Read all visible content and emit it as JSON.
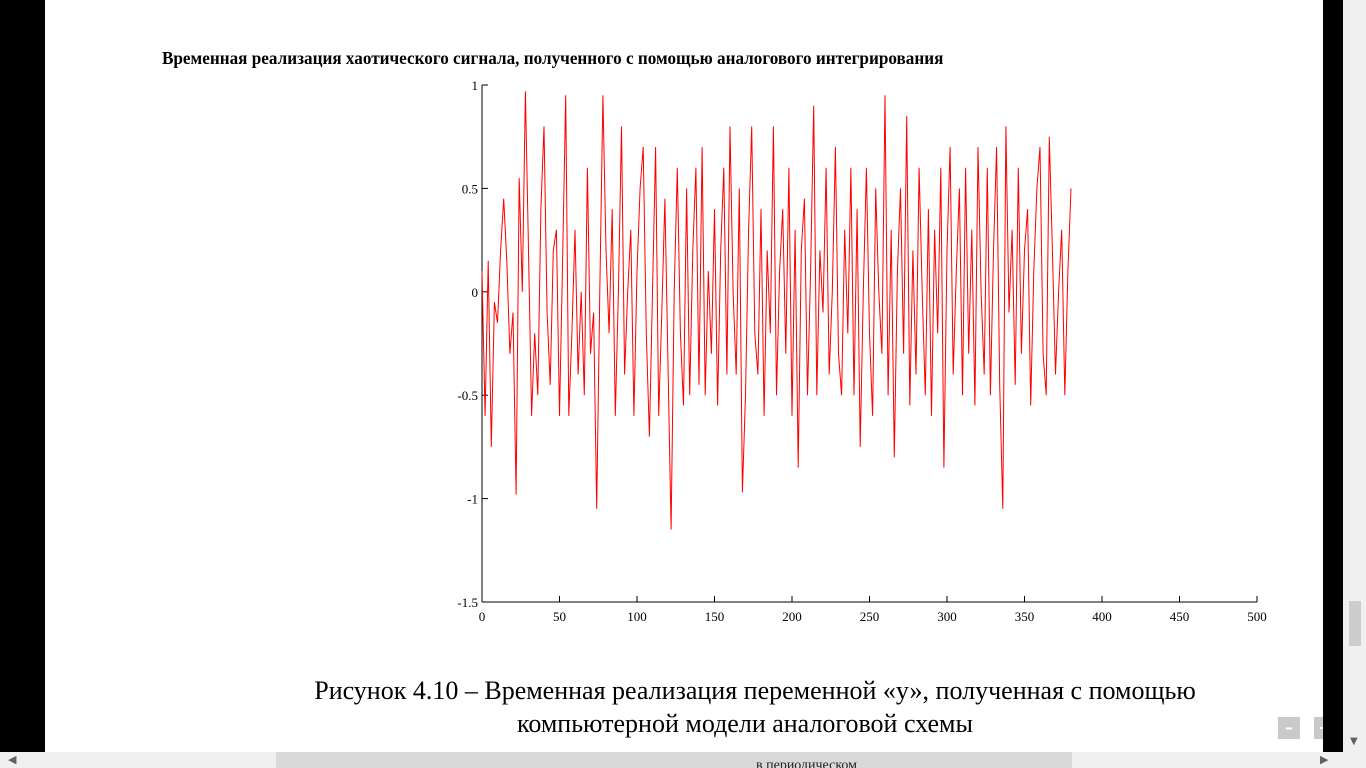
{
  "chart_data": {
    "type": "line",
    "title": "Временная реализация хаотического сигнала, полученного с помощью аналогового интегрирования",
    "xlim": [
      0,
      500
    ],
    "ylim": [
      -1.5,
      1
    ],
    "x_ticks": [
      "0",
      "50",
      "100",
      "150",
      "200",
      "250",
      "300",
      "350",
      "400",
      "450",
      "500"
    ],
    "y_ticks": [
      "1",
      "0.5",
      "0",
      "-0.5",
      "-1",
      "-1.5"
    ],
    "grid": false,
    "series_color": "#ff0000",
    "series": [
      {
        "x_start": 0,
        "x_step": 2,
        "values": [
          0.1,
          -0.6,
          0.15,
          -0.75,
          -0.05,
          -0.15,
          0.2,
          0.45,
          0.15,
          -0.3,
          -0.1,
          -0.98,
          0.55,
          0.0,
          0.97,
          0.2,
          -0.6,
          -0.2,
          -0.5,
          0.4,
          0.8,
          -0.1,
          -0.45,
          0.2,
          0.3,
          -0.6,
          0.15,
          0.95,
          -0.6,
          -0.2,
          0.3,
          -0.4,
          0.0,
          -0.5,
          0.6,
          -0.3,
          -0.1,
          -1.05,
          0.0,
          0.95,
          0.2,
          -0.2,
          0.4,
          -0.6,
          0.0,
          0.8,
          -0.4,
          0.0,
          0.3,
          -0.6,
          0.1,
          0.5,
          0.7,
          -0.2,
          -0.7,
          0.0,
          0.7,
          -0.6,
          -0.1,
          0.45,
          -0.35,
          -1.15,
          0.0,
          0.6,
          -0.2,
          -0.55,
          0.5,
          -0.5,
          0.2,
          0.6,
          -0.45,
          0.7,
          -0.5,
          0.1,
          -0.3,
          0.4,
          -0.55,
          0.2,
          0.6,
          -0.4,
          0.8,
          0.0,
          -0.4,
          0.5,
          -0.97,
          -0.5,
          0.3,
          0.8,
          -0.2,
          -0.4,
          0.4,
          -0.6,
          0.2,
          -0.2,
          0.8,
          -0.5,
          0.1,
          0.4,
          -0.3,
          0.6,
          -0.6,
          0.3,
          -0.85,
          0.2,
          0.45,
          -0.5,
          0.1,
          0.9,
          -0.5,
          0.2,
          -0.1,
          0.6,
          -0.4,
          0.0,
          0.7,
          -0.3,
          -0.5,
          0.3,
          -0.2,
          0.6,
          -0.5,
          0.4,
          -0.75,
          0.0,
          0.6,
          -0.2,
          -0.6,
          0.5,
          0.0,
          -0.3,
          0.95,
          -0.5,
          0.3,
          -0.8,
          0.1,
          0.5,
          -0.3,
          0.85,
          -0.55,
          0.2,
          -0.4,
          0.6,
          0.0,
          -0.5,
          0.4,
          -0.6,
          0.3,
          -0.2,
          0.6,
          -0.85,
          0.2,
          0.7,
          -0.4,
          0.1,
          0.5,
          -0.5,
          0.6,
          -0.3,
          0.3,
          -0.55,
          0.7,
          0.0,
          -0.4,
          0.6,
          -0.5,
          0.2,
          0.7,
          -0.45,
          -1.05,
          0.8,
          -0.1,
          0.3,
          -0.45,
          0.6,
          -0.3,
          0.2,
          0.4,
          -0.55,
          0.1,
          0.5,
          0.7,
          -0.3,
          -0.5,
          0.75,
          0.2,
          -0.4,
          0.0,
          0.3,
          -0.5,
          0.1,
          0.5
        ]
      }
    ]
  },
  "caption": {
    "line1": "Рисунок 4.10 – Временная реализация переменной «у», полученная с помощью",
    "line2": "компьютерной модели аналоговой схемы"
  },
  "controls": {
    "zoom_out": "–",
    "zoom_in": "+"
  },
  "scrollbar": {
    "fragment_text": "в периодическом"
  }
}
